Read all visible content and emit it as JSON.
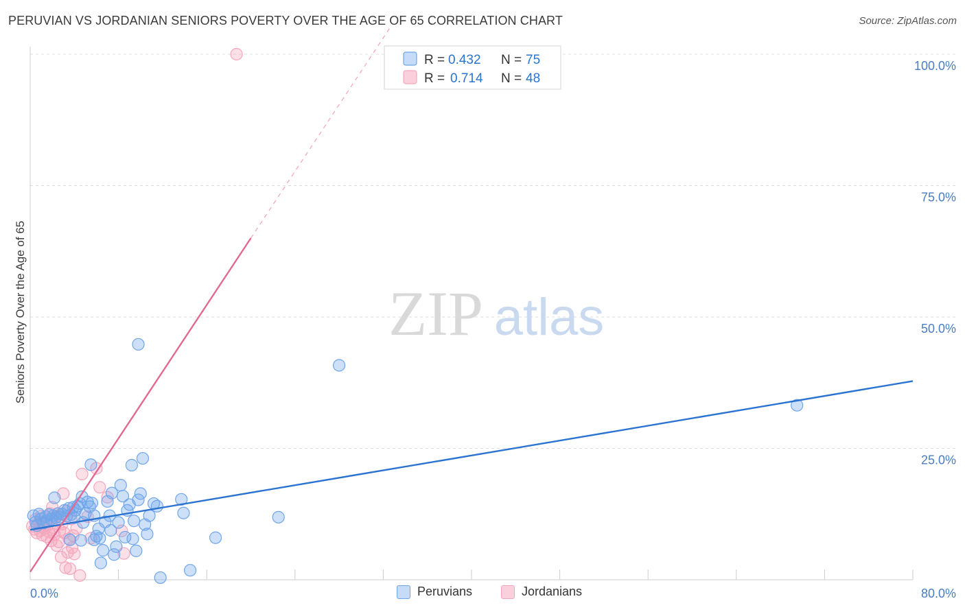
{
  "header": {
    "title": "PERUVIAN VS JORDANIAN SENIORS POVERTY OVER THE AGE OF 65 CORRELATION CHART",
    "source": "Source: ZipAtlas.com"
  },
  "colors": {
    "peruvians": "#6fa5ea",
    "peruvians_line": "#2a73d1",
    "jordanians": "#f4a6bc",
    "jordanians_line": "#e06a93",
    "axis_label": "#4a7cc4",
    "grid": "#dddddd"
  },
  "watermark": {
    "zip": "ZIP",
    "atlas": "atlas"
  },
  "legend": {
    "rows": [
      {
        "r_label": "R = ",
        "r_value": "0.432",
        "n_label": "N = ",
        "n_value": "75"
      },
      {
        "r_label": "R = ",
        "r_value": "0.714",
        "n_label": "N = ",
        "n_value": "48"
      }
    ]
  },
  "bottom_legend": [
    "Peruvians",
    "Jordanians"
  ],
  "chart_data": {
    "type": "scatter",
    "title": "PERUVIAN VS JORDANIAN SENIORS POVERTY OVER THE AGE OF 65 CORRELATION CHART",
    "xlabel": "",
    "ylabel": "Seniors Poverty Over the Age of 65",
    "xlim": [
      0,
      80
    ],
    "ylim": [
      0,
      100
    ],
    "x_tick_labels": [
      "0.0%",
      "80.0%"
    ],
    "y_tick_labels": [
      "100.0%",
      "75.0%",
      "50.0%",
      "25.0%"
    ],
    "y_ticks": [
      100,
      75,
      50,
      25
    ],
    "grid": true,
    "legend_position": "top-center",
    "series": [
      {
        "name": "Peruvians",
        "R": 0.432,
        "N": 75,
        "trend": {
          "x": [
            0,
            80
          ],
          "y": [
            9.5,
            37.8
          ]
        },
        "points": [
          [
            0.3,
            12.2
          ],
          [
            0.5,
            11.0
          ],
          [
            0.6,
            10.3
          ],
          [
            0.8,
            12.5
          ],
          [
            1.0,
            11.6
          ],
          [
            1.2,
            10.8
          ],
          [
            1.4,
            12.0
          ],
          [
            1.5,
            11.2
          ],
          [
            1.7,
            12.4
          ],
          [
            1.9,
            11.5
          ],
          [
            2.1,
            12.2
          ],
          [
            2.3,
            11.8
          ],
          [
            2.5,
            12.6
          ],
          [
            2.7,
            11.9
          ],
          [
            2.9,
            12.5
          ],
          [
            3.1,
            13.2
          ],
          [
            3.3,
            12.1
          ],
          [
            3.5,
            13.6
          ],
          [
            3.7,
            12.4
          ],
          [
            3.9,
            13.8
          ],
          [
            4.1,
            13.2
          ],
          [
            4.3,
            14.0
          ],
          [
            4.5,
            14.5
          ],
          [
            4.7,
            15.8
          ],
          [
            2.2,
            15.6
          ],
          [
            4.0,
            11.8
          ],
          [
            4.8,
            10.9
          ],
          [
            5.0,
            12.6
          ],
          [
            5.2,
            14.8
          ],
          [
            5.4,
            13.9
          ],
          [
            5.6,
            14.6
          ],
          [
            5.8,
            12.2
          ],
          [
            6.0,
            8.3
          ],
          [
            6.2,
            9.7
          ],
          [
            6.4,
            3.2
          ],
          [
            6.6,
            5.6
          ],
          [
            6.8,
            11.0
          ],
          [
            7.0,
            14.9
          ],
          [
            7.2,
            12.2
          ],
          [
            7.4,
            16.5
          ],
          [
            7.6,
            4.8
          ],
          [
            7.8,
            6.3
          ],
          [
            8.0,
            10.9
          ],
          [
            8.2,
            18.0
          ],
          [
            8.4,
            15.9
          ],
          [
            8.6,
            8.1
          ],
          [
            8.8,
            13.2
          ],
          [
            9.0,
            14.3
          ],
          [
            9.2,
            21.8
          ],
          [
            9.4,
            11.2
          ],
          [
            9.6,
            5.5
          ],
          [
            9.8,
            15.2
          ],
          [
            10.0,
            16.4
          ],
          [
            10.2,
            23.1
          ],
          [
            10.4,
            10.5
          ],
          [
            10.6,
            8.7
          ],
          [
            10.8,
            12.2
          ],
          [
            11.2,
            14.5
          ],
          [
            11.5,
            14.0
          ],
          [
            11.8,
            0.4
          ],
          [
            13.7,
            15.3
          ],
          [
            13.9,
            12.7
          ],
          [
            14.5,
            1.8
          ],
          [
            16.8,
            8.0
          ],
          [
            22.5,
            11.9
          ],
          [
            9.8,
            44.8
          ],
          [
            28.0,
            40.8
          ],
          [
            69.5,
            33.2
          ],
          [
            5.5,
            21.9
          ],
          [
            3.6,
            7.6
          ],
          [
            4.6,
            7.5
          ],
          [
            6.3,
            7.9
          ],
          [
            7.3,
            9.4
          ],
          [
            5.8,
            7.6
          ],
          [
            9.3,
            7.8
          ]
        ]
      },
      {
        "name": "Jordanians",
        "R": 0.714,
        "N": 48,
        "trend": {
          "x": [
            0,
            20
          ],
          "y": [
            1.5,
            65.0
          ]
        },
        "points": [
          [
            0.2,
            10.2
          ],
          [
            0.4,
            9.6
          ],
          [
            0.5,
            11.5
          ],
          [
            0.6,
            8.9
          ],
          [
            0.8,
            10.8
          ],
          [
            0.9,
            9.3
          ],
          [
            1.0,
            12.1
          ],
          [
            1.1,
            8.5
          ],
          [
            1.2,
            10.0
          ],
          [
            1.3,
            9.7
          ],
          [
            1.4,
            11.2
          ],
          [
            1.5,
            8.2
          ],
          [
            1.6,
            10.5
          ],
          [
            1.7,
            9.1
          ],
          [
            1.8,
            12.6
          ],
          [
            1.9,
            7.4
          ],
          [
            2.0,
            13.8
          ],
          [
            2.1,
            9.9
          ],
          [
            2.2,
            8.6
          ],
          [
            2.3,
            11.9
          ],
          [
            2.4,
            6.5
          ],
          [
            2.5,
            12.2
          ],
          [
            2.6,
            7.2
          ],
          [
            2.7,
            9.4
          ],
          [
            2.8,
            4.3
          ],
          [
            2.9,
            10.6
          ],
          [
            3.0,
            16.4
          ],
          [
            3.1,
            8.9
          ],
          [
            3.2,
            2.3
          ],
          [
            3.3,
            13.1
          ],
          [
            3.4,
            5.2
          ],
          [
            3.5,
            7.8
          ],
          [
            3.6,
            2.1
          ],
          [
            3.7,
            11.6
          ],
          [
            3.8,
            6.1
          ],
          [
            3.9,
            8.4
          ],
          [
            4.0,
            4.9
          ],
          [
            4.2,
            9.8
          ],
          [
            4.5,
            0.8
          ],
          [
            4.7,
            20.1
          ],
          [
            5.2,
            12.0
          ],
          [
            5.5,
            7.9
          ],
          [
            6.0,
            21.2
          ],
          [
            6.3,
            17.6
          ],
          [
            7.0,
            15.7
          ],
          [
            8.3,
            9.3
          ],
          [
            8.5,
            5.0
          ],
          [
            18.7,
            100.0
          ]
        ]
      }
    ]
  }
}
